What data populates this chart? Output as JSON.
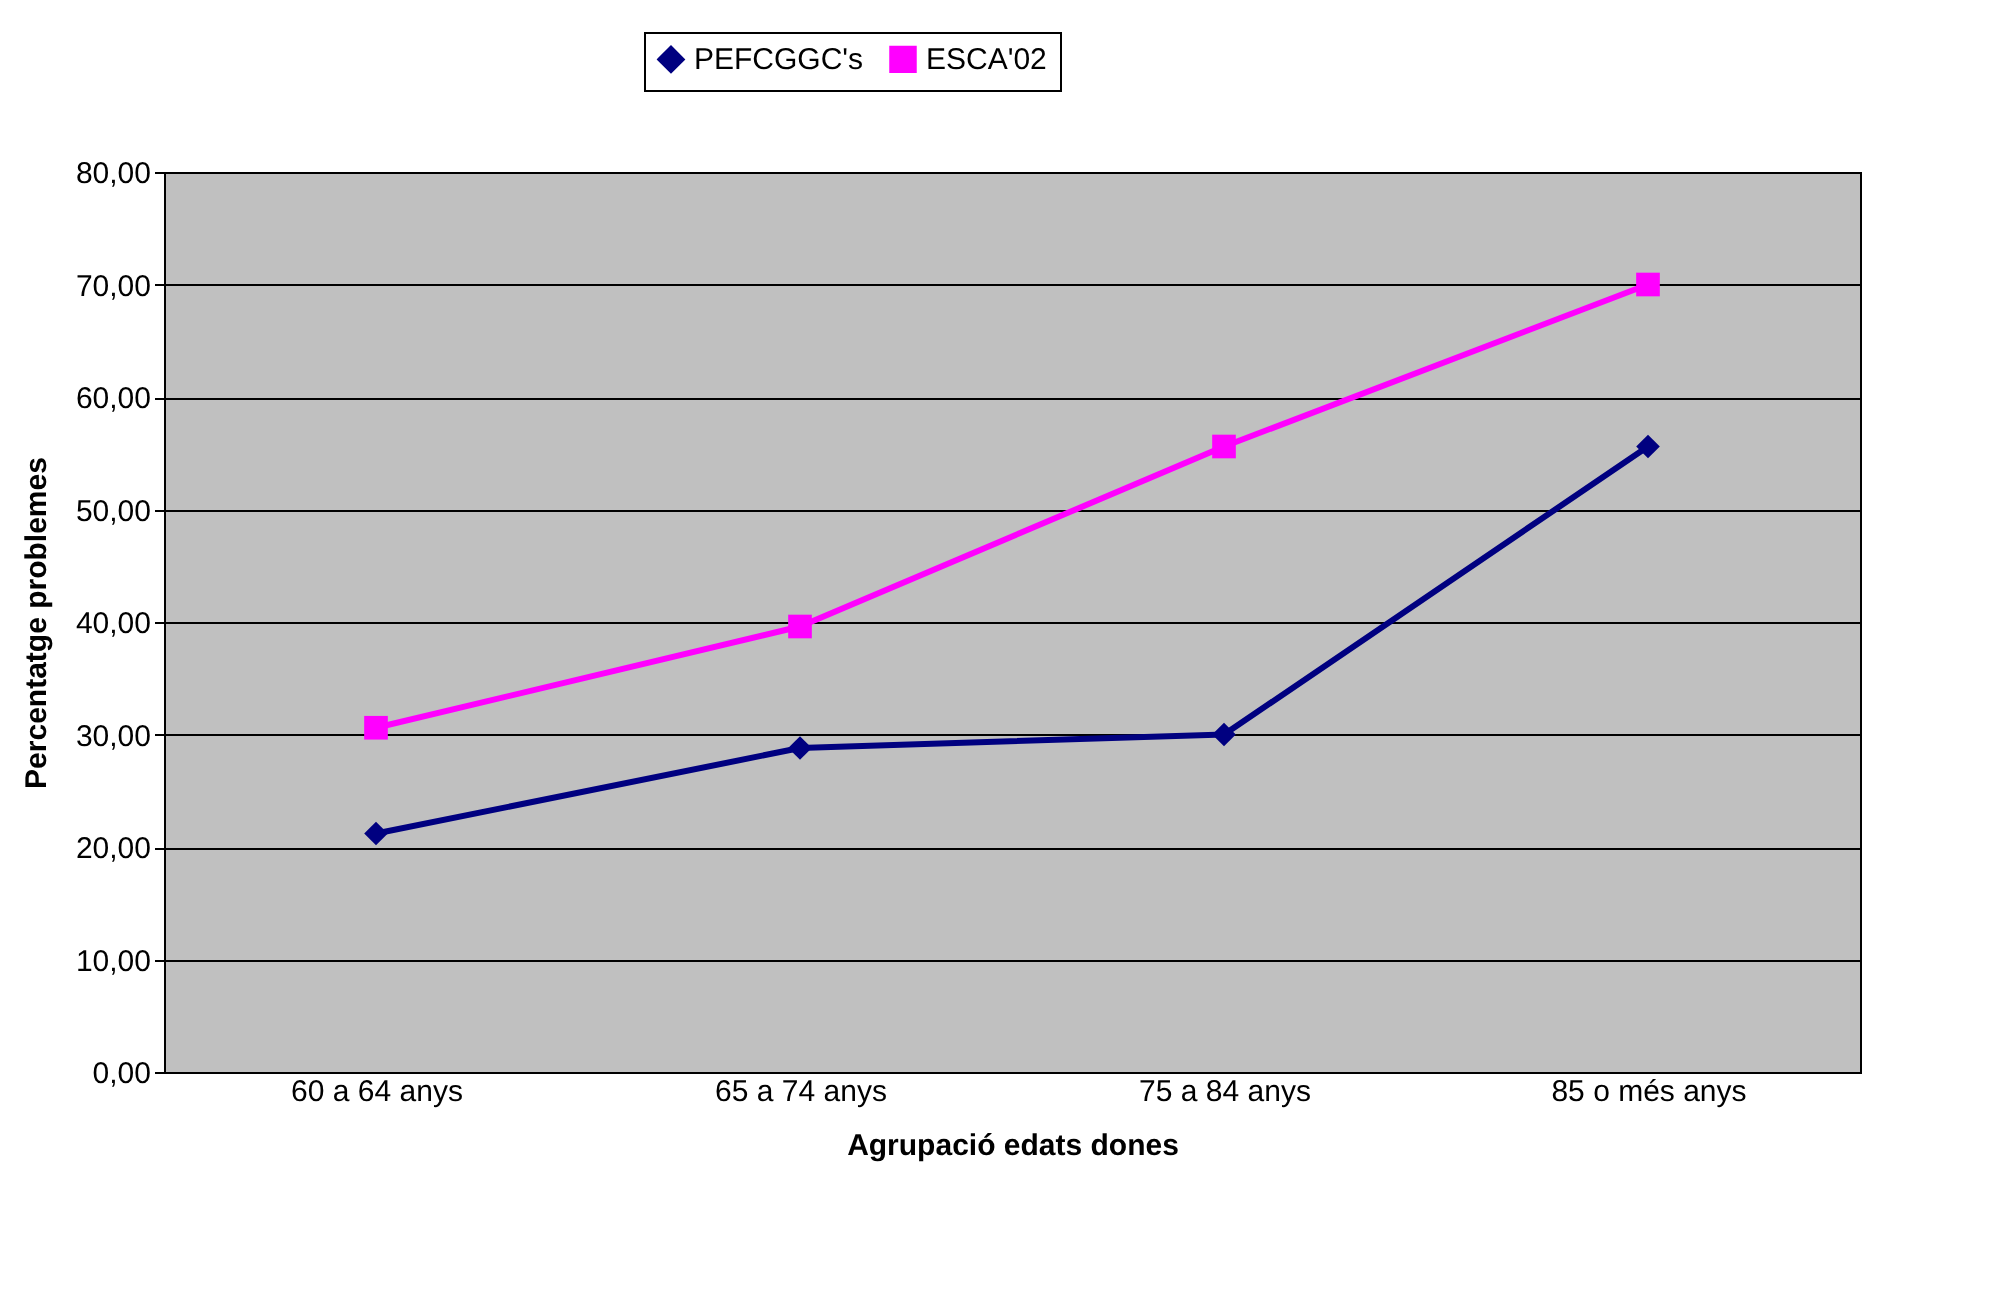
{
  "chart_data": {
    "type": "line",
    "xlabel": "Agrupació edats dones",
    "ylabel": "Percentatge problemes",
    "categories": [
      "60 a 64 anys",
      "65 a 74 anys",
      "75 a 84 anys",
      "85 o més anys"
    ],
    "series": [
      {
        "name": "PEFCGGC's",
        "color": "#000080",
        "marker": "diamond",
        "values": [
          21.2,
          28.8,
          30.0,
          55.6
        ]
      },
      {
        "name": "ESCA'02",
        "color": "#ff00ff",
        "marker": "square",
        "values": [
          30.6,
          39.6,
          55.6,
          70.0
        ]
      }
    ],
    "ylim": [
      0,
      80
    ],
    "yticks": [
      {
        "value": 0,
        "label": "0,00"
      },
      {
        "value": 10,
        "label": "10,00"
      },
      {
        "value": 20,
        "label": "20,00"
      },
      {
        "value": 30,
        "label": "30,00"
      },
      {
        "value": 40,
        "label": "40,00"
      },
      {
        "value": 50,
        "label": "50,00"
      },
      {
        "value": 60,
        "label": "60,00"
      },
      {
        "value": 70,
        "label": "70,00"
      },
      {
        "value": 80,
        "label": "80,00"
      }
    ],
    "grid": "y",
    "legend": "top",
    "line_style": "solid"
  }
}
